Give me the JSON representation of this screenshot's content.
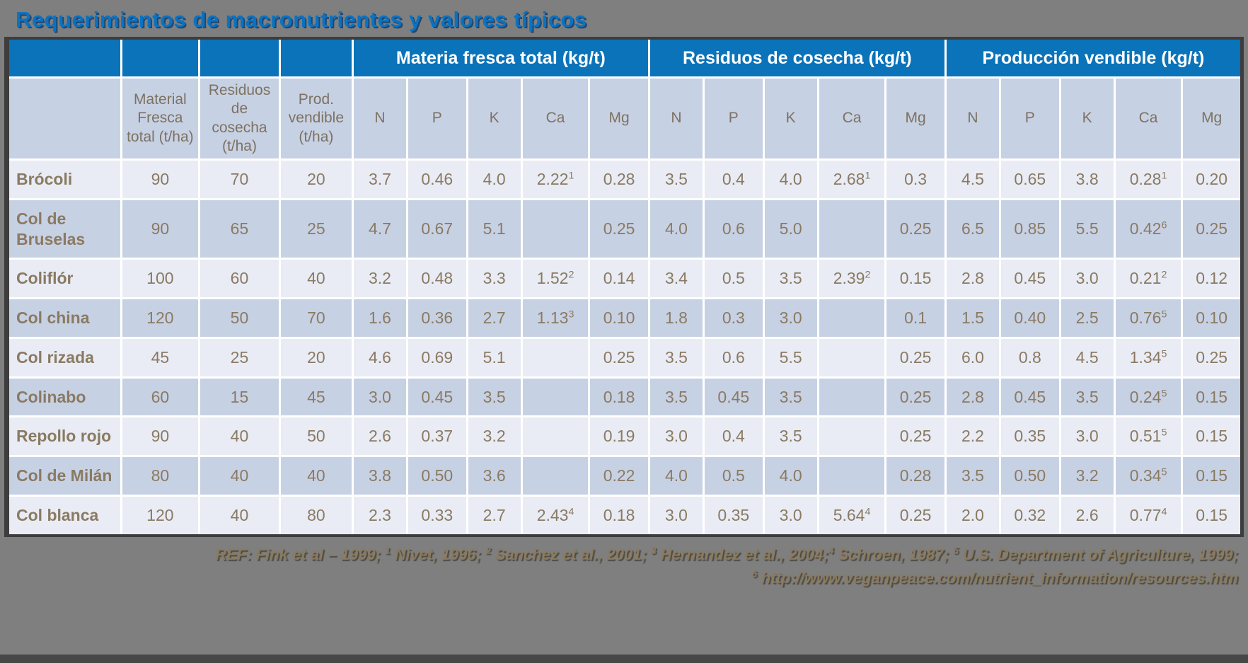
{
  "title": "Requerimientos de macronutrientes y valores típicos",
  "colors": {
    "background": "#7f7f7f",
    "title_blue": "#0b72c0",
    "header_blue": "#0a73b9",
    "row_light": "#e9ecf5",
    "row_dark": "#c7d1e4",
    "cell_text": "#8a7a62"
  },
  "table": {
    "group_headers": [
      {
        "label": "Materia fresca total (kg/t)",
        "span": 5
      },
      {
        "label": "Residuos de cosecha (kg/t)",
        "span": 5
      },
      {
        "label": "Producción vendible (kg/t)",
        "span": 5
      }
    ],
    "column_headers": [
      "",
      "Material Fresca total (t/ha)",
      "Residuos de cosecha (t/ha)",
      "Prod. vendible (t/ha)",
      "N",
      "P",
      "K",
      "Ca",
      "Mg",
      "N",
      "P",
      "K",
      "Ca",
      "Mg",
      "N",
      "P",
      "K",
      "Ca",
      "Mg"
    ],
    "rows": [
      {
        "name": "Brócoli",
        "values": [
          "90",
          "70",
          "20",
          "3.7",
          "0.46",
          "4.0",
          {
            "text": "2.22",
            "sup": "1"
          },
          "0.28",
          "3.5",
          "0.4",
          "4.0",
          {
            "text": "2.68",
            "sup": "1"
          },
          "0.3",
          "4.5",
          "0.65",
          "3.8",
          {
            "text": "0.28",
            "sup": "1"
          },
          "0.20"
        ]
      },
      {
        "name": "Col de Bruselas",
        "values": [
          "90",
          "65",
          "25",
          "4.7",
          "0.67",
          "5.1",
          "",
          "0.25",
          "4.0",
          "0.6",
          "5.0",
          "",
          "0.25",
          "6.5",
          "0.85",
          "5.5",
          {
            "text": "0.42",
            "sup": "6"
          },
          "0.25"
        ]
      },
      {
        "name": "Coliflór",
        "values": [
          "100",
          "60",
          "40",
          "3.2",
          "0.48",
          "3.3",
          {
            "text": "1.52",
            "sup": "2"
          },
          "0.14",
          "3.4",
          "0.5",
          "3.5",
          {
            "text": "2.39",
            "sup": "2"
          },
          "0.15",
          "2.8",
          "0.45",
          "3.0",
          {
            "text": "0.21",
            "sup": "2"
          },
          "0.12"
        ]
      },
      {
        "name": "Col china",
        "values": [
          "120",
          "50",
          "70",
          "1.6",
          "0.36",
          "2.7",
          {
            "text": "1.13",
            "sup": "3"
          },
          "0.10",
          "1.8",
          "0.3",
          "3.0",
          "",
          "0.1",
          "1.5",
          "0.40",
          "2.5",
          {
            "text": "0.76",
            "sup": "5"
          },
          "0.10"
        ]
      },
      {
        "name": "Col rizada",
        "values": [
          "45",
          "25",
          "20",
          "4.6",
          "0.69",
          "5.1",
          "",
          "0.25",
          "3.5",
          "0.6",
          "5.5",
          "",
          "0.25",
          "6.0",
          "0.8",
          "4.5",
          {
            "text": "1.34",
            "sup": "5"
          },
          "0.25"
        ]
      },
      {
        "name": "Colinabo",
        "values": [
          "60",
          "15",
          "45",
          "3.0",
          "0.45",
          "3.5",
          "",
          "0.18",
          "3.5",
          "0.45",
          "3.5",
          "",
          "0.25",
          "2.8",
          "0.45",
          "3.5",
          {
            "text": "0.24",
            "sup": "5"
          },
          "0.15"
        ]
      },
      {
        "name": "Repollo rojo",
        "values": [
          "90",
          "40",
          "50",
          "2.6",
          "0.37",
          "3.2",
          "",
          "0.19",
          "3.0",
          "0.4",
          "3.5",
          "",
          "0.25",
          "2.2",
          "0.35",
          "3.0",
          {
            "text": "0.51",
            "sup": "5"
          },
          "0.15"
        ]
      },
      {
        "name": "Col de Milán",
        "values": [
          "80",
          "40",
          "40",
          "3.8",
          "0.50",
          "3.6",
          "",
          "0.22",
          "4.0",
          "0.5",
          "4.0",
          "",
          "0.28",
          "3.5",
          "0.50",
          "3.2",
          {
            "text": "0.34",
            "sup": "5"
          },
          "0.15"
        ]
      },
      {
        "name": "Col blanca",
        "values": [
          "120",
          "40",
          "80",
          "2.3",
          "0.33",
          "2.7",
          {
            "text": "2.43",
            "sup": "4"
          },
          "0.18",
          "3.0",
          "0.35",
          "3.0",
          {
            "text": "5.64",
            "sup": "4"
          },
          "0.25",
          "2.0",
          "0.32",
          "2.6",
          {
            "text": "0.77",
            "sup": "4"
          },
          "0.15"
        ]
      }
    ]
  },
  "footer": {
    "line1": [
      {
        "t": "REF: Fink et al – 1999; "
      },
      {
        "t": "1",
        "sup": true
      },
      {
        "t": " Nivet, 1996; "
      },
      {
        "t": "2",
        "sup": true
      },
      {
        "t": " Sanchez et al., 2001; "
      },
      {
        "t": "3",
        "sup": true
      },
      {
        "t": " Hernandez et al., 2004;"
      },
      {
        "t": "4",
        "sup": true
      },
      {
        "t": " Schroen, 1987; "
      },
      {
        "t": "5",
        "sup": true
      },
      {
        "t": " U.S. Department of Agriculture, 1999;"
      }
    ],
    "line2": [
      {
        "t": "6",
        "sup": true
      },
      {
        "t": " http://www.veganpeace.com/nutrient_information/resources.htm"
      }
    ]
  }
}
